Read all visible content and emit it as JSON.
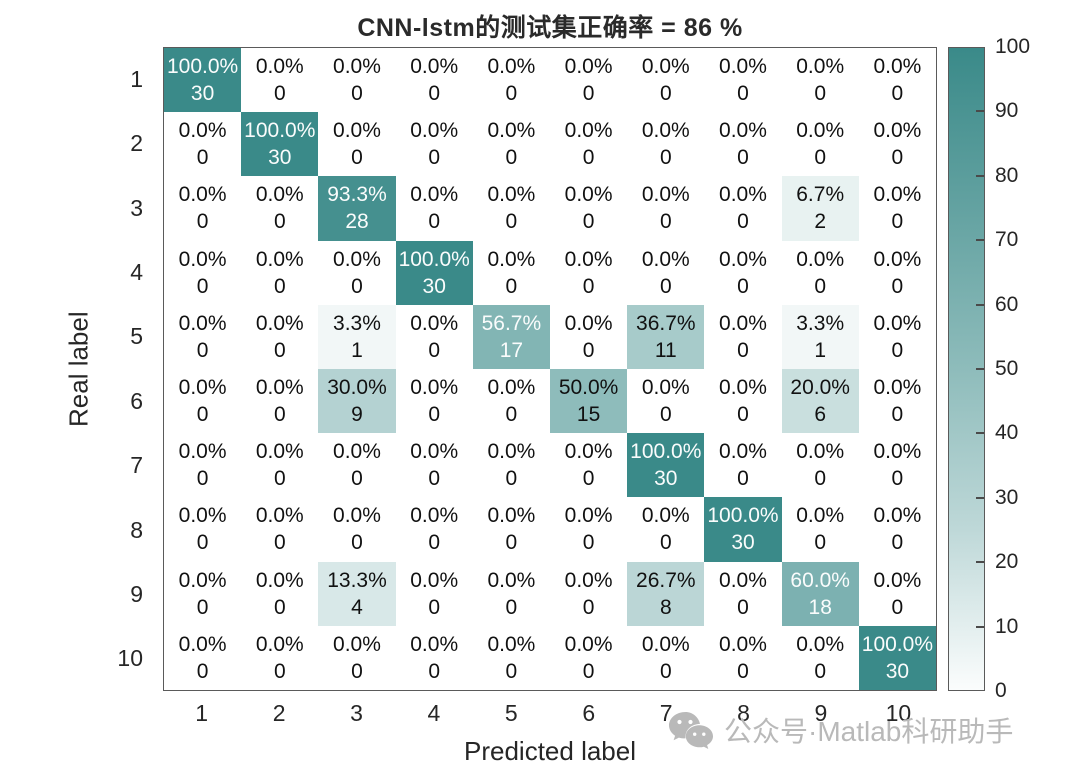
{
  "chart_data": {
    "type": "heatmap",
    "title": "CNN-lstm的测试集正确率 = 86 %",
    "accuracy_percent": 86,
    "xlabel": "Predicted label",
    "ylabel": "Real label",
    "x_ticklabels": [
      "1",
      "2",
      "3",
      "4",
      "5",
      "6",
      "7",
      "8",
      "9",
      "10"
    ],
    "y_ticklabels": [
      "1",
      "2",
      "3",
      "4",
      "5",
      "6",
      "7",
      "8",
      "9",
      "10"
    ],
    "cell_format": "percent over count",
    "percent_matrix": [
      [
        100,
        0,
        0,
        0,
        0,
        0,
        0,
        0,
        0,
        0
      ],
      [
        0,
        100,
        0,
        0,
        0,
        0,
        0,
        0,
        0,
        0
      ],
      [
        0,
        0,
        93.3,
        0,
        0,
        0,
        0,
        0,
        6.7,
        0
      ],
      [
        0,
        0,
        0,
        100,
        0,
        0,
        0,
        0,
        0,
        0
      ],
      [
        0,
        0,
        3.3,
        0,
        56.7,
        0,
        36.7,
        0,
        3.3,
        0
      ],
      [
        0,
        0,
        30,
        0,
        0,
        50,
        0,
        0,
        20,
        0
      ],
      [
        0,
        0,
        0,
        0,
        0,
        0,
        100,
        0,
        0,
        0
      ],
      [
        0,
        0,
        0,
        0,
        0,
        0,
        0,
        100,
        0,
        0
      ],
      [
        0,
        0,
        13.3,
        0,
        0,
        0,
        26.7,
        0,
        60,
        0
      ],
      [
        0,
        0,
        0,
        0,
        0,
        0,
        0,
        0,
        0,
        100
      ]
    ],
    "count_matrix": [
      [
        30,
        0,
        0,
        0,
        0,
        0,
        0,
        0,
        0,
        0
      ],
      [
        0,
        30,
        0,
        0,
        0,
        0,
        0,
        0,
        0,
        0
      ],
      [
        0,
        0,
        28,
        0,
        0,
        0,
        0,
        0,
        2,
        0
      ],
      [
        0,
        0,
        0,
        30,
        0,
        0,
        0,
        0,
        0,
        0
      ],
      [
        0,
        0,
        1,
        0,
        17,
        0,
        11,
        0,
        1,
        0
      ],
      [
        0,
        0,
        9,
        0,
        0,
        15,
        0,
        0,
        6,
        0
      ],
      [
        0,
        0,
        0,
        0,
        0,
        0,
        30,
        0,
        0,
        0
      ],
      [
        0,
        0,
        0,
        0,
        0,
        0,
        0,
        30,
        0,
        0
      ],
      [
        0,
        0,
        4,
        0,
        0,
        0,
        8,
        0,
        18,
        0
      ],
      [
        0,
        0,
        0,
        0,
        0,
        0,
        0,
        0,
        0,
        30
      ]
    ],
    "colorbar": {
      "min": 0,
      "max": 100,
      "ticks": [
        100,
        90,
        80,
        70,
        60,
        50,
        40,
        30,
        20,
        10,
        0
      ],
      "high_color": "#3a8a89",
      "low_color": "#fbfdfd",
      "position": "right"
    },
    "grid": false,
    "cell_text_dark": "#111111",
    "cell_text_light": "#fafcfc",
    "white_text_threshold": 55
  },
  "watermark": {
    "icon": "wechat-icon",
    "text": "公众号·Matlab科研助手",
    "color": "#b9b9b9"
  }
}
